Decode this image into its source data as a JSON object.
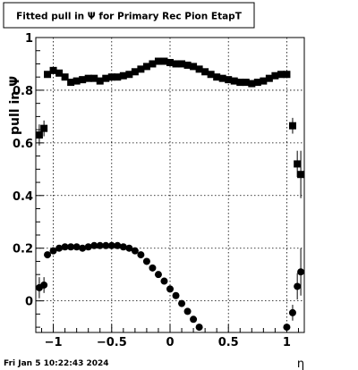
{
  "chart_data": {
    "type": "scatter",
    "title": "Fitted pull in  Ψ  for Primary Rec Pion EtapT",
    "xlabel": "η",
    "ylabel": "pull in  Ψ",
    "xlim": [
      -1.15,
      1.15
    ],
    "ylim": [
      -0.12,
      1.0
    ],
    "xticks": [
      -1,
      -0.5,
      0,
      0.5,
      1
    ],
    "xtick_labels": [
      "−1",
      "−0.5",
      "0",
      "0.5",
      "1"
    ],
    "yticks": [
      0,
      0.2,
      0.4,
      0.6,
      0.8,
      1
    ],
    "ytick_labels": [
      "0",
      "0.2",
      "0.4",
      "0.6",
      "0.8",
      "1"
    ],
    "grid": true,
    "legend": "none",
    "series": [
      {
        "marker": "square",
        "points": [
          {
            "x": -1.12,
            "y": 0.63,
            "err": 0.04
          },
          {
            "x": -1.08,
            "y": 0.655,
            "err": 0.03
          },
          {
            "x": -1.05,
            "y": 0.86,
            "err": 0.012
          },
          {
            "x": -1.0,
            "y": 0.875,
            "err": 0.01
          },
          {
            "x": -0.95,
            "y": 0.865,
            "err": 0.01
          },
          {
            "x": -0.9,
            "y": 0.85,
            "err": 0.01
          },
          {
            "x": -0.85,
            "y": 0.83,
            "err": 0.01
          },
          {
            "x": -0.8,
            "y": 0.835,
            "err": 0.01
          },
          {
            "x": -0.75,
            "y": 0.84,
            "err": 0.01
          },
          {
            "x": -0.7,
            "y": 0.845,
            "err": 0.01
          },
          {
            "x": -0.65,
            "y": 0.845,
            "err": 0.01
          },
          {
            "x": -0.6,
            "y": 0.835,
            "err": 0.01
          },
          {
            "x": -0.55,
            "y": 0.845,
            "err": 0.01
          },
          {
            "x": -0.5,
            "y": 0.85,
            "err": 0.01
          },
          {
            "x": -0.45,
            "y": 0.85,
            "err": 0.01
          },
          {
            "x": -0.4,
            "y": 0.855,
            "err": 0.01
          },
          {
            "x": -0.35,
            "y": 0.86,
            "err": 0.01
          },
          {
            "x": -0.3,
            "y": 0.87,
            "err": 0.01
          },
          {
            "x": -0.25,
            "y": 0.88,
            "err": 0.01
          },
          {
            "x": -0.2,
            "y": 0.89,
            "err": 0.01
          },
          {
            "x": -0.15,
            "y": 0.9,
            "err": 0.01
          },
          {
            "x": -0.1,
            "y": 0.91,
            "err": 0.01
          },
          {
            "x": -0.05,
            "y": 0.91,
            "err": 0.01
          },
          {
            "x": 0.0,
            "y": 0.905,
            "err": 0.01
          },
          {
            "x": 0.05,
            "y": 0.9,
            "err": 0.01
          },
          {
            "x": 0.1,
            "y": 0.9,
            "err": 0.01
          },
          {
            "x": 0.15,
            "y": 0.895,
            "err": 0.01
          },
          {
            "x": 0.2,
            "y": 0.89,
            "err": 0.01
          },
          {
            "x": 0.25,
            "y": 0.88,
            "err": 0.01
          },
          {
            "x": 0.3,
            "y": 0.87,
            "err": 0.01
          },
          {
            "x": 0.35,
            "y": 0.86,
            "err": 0.01
          },
          {
            "x": 0.4,
            "y": 0.85,
            "err": 0.01
          },
          {
            "x": 0.45,
            "y": 0.845,
            "err": 0.01
          },
          {
            "x": 0.5,
            "y": 0.84,
            "err": 0.01
          },
          {
            "x": 0.55,
            "y": 0.835,
            "err": 0.01
          },
          {
            "x": 0.6,
            "y": 0.83,
            "err": 0.01
          },
          {
            "x": 0.65,
            "y": 0.83,
            "err": 0.01
          },
          {
            "x": 0.7,
            "y": 0.825,
            "err": 0.01
          },
          {
            "x": 0.75,
            "y": 0.83,
            "err": 0.01
          },
          {
            "x": 0.8,
            "y": 0.835,
            "err": 0.01
          },
          {
            "x": 0.85,
            "y": 0.845,
            "err": 0.01
          },
          {
            "x": 0.9,
            "y": 0.855,
            "err": 0.01
          },
          {
            "x": 0.95,
            "y": 0.86,
            "err": 0.01
          },
          {
            "x": 1.0,
            "y": 0.86,
            "err": 0.012
          },
          {
            "x": 1.05,
            "y": 0.665,
            "err": 0.03
          },
          {
            "x": 1.09,
            "y": 0.52,
            "err": 0.05
          },
          {
            "x": 1.12,
            "y": 0.48,
            "err": 0.09
          }
        ]
      },
      {
        "marker": "circle",
        "points": [
          {
            "x": -1.12,
            "y": 0.05,
            "err": 0.04
          },
          {
            "x": -1.08,
            "y": 0.06,
            "err": 0.03
          },
          {
            "x": -1.05,
            "y": 0.175,
            "err": 0.012
          },
          {
            "x": -1.0,
            "y": 0.19,
            "err": 0.01
          },
          {
            "x": -0.95,
            "y": 0.2,
            "err": 0.01
          },
          {
            "x": -0.9,
            "y": 0.205,
            "err": 0.01
          },
          {
            "x": -0.85,
            "y": 0.205,
            "err": 0.01
          },
          {
            "x": -0.8,
            "y": 0.205,
            "err": 0.01
          },
          {
            "x": -0.75,
            "y": 0.2,
            "err": 0.01
          },
          {
            "x": -0.7,
            "y": 0.205,
            "err": 0.01
          },
          {
            "x": -0.65,
            "y": 0.21,
            "err": 0.01
          },
          {
            "x": -0.6,
            "y": 0.21,
            "err": 0.01
          },
          {
            "x": -0.55,
            "y": 0.21,
            "err": 0.01
          },
          {
            "x": -0.5,
            "y": 0.21,
            "err": 0.01
          },
          {
            "x": -0.45,
            "y": 0.21,
            "err": 0.01
          },
          {
            "x": -0.4,
            "y": 0.205,
            "err": 0.01
          },
          {
            "x": -0.35,
            "y": 0.2,
            "err": 0.01
          },
          {
            "x": -0.3,
            "y": 0.19,
            "err": 0.01
          },
          {
            "x": -0.25,
            "y": 0.175,
            "err": 0.01
          },
          {
            "x": -0.2,
            "y": 0.15,
            "err": 0.01
          },
          {
            "x": -0.15,
            "y": 0.125,
            "err": 0.01
          },
          {
            "x": -0.1,
            "y": 0.1,
            "err": 0.01
          },
          {
            "x": -0.05,
            "y": 0.075,
            "err": 0.01
          },
          {
            "x": 0.0,
            "y": 0.045,
            "err": 0.01
          },
          {
            "x": 0.05,
            "y": 0.02,
            "err": 0.01
          },
          {
            "x": 0.1,
            "y": -0.01,
            "err": 0.01
          },
          {
            "x": 0.15,
            "y": -0.04,
            "err": 0.01
          },
          {
            "x": 0.2,
            "y": -0.07,
            "err": 0.01
          },
          {
            "x": 0.25,
            "y": -0.1,
            "err": 0.01
          },
          {
            "x": 1.0,
            "y": -0.1,
            "err": 0.012
          },
          {
            "x": 1.05,
            "y": -0.045,
            "err": 0.03
          },
          {
            "x": 1.09,
            "y": 0.055,
            "err": 0.05
          },
          {
            "x": 1.12,
            "y": 0.11,
            "err": 0.09
          }
        ]
      }
    ]
  },
  "footer": {
    "timestamp": "Fri Jan  5 10:22:43 2024"
  }
}
